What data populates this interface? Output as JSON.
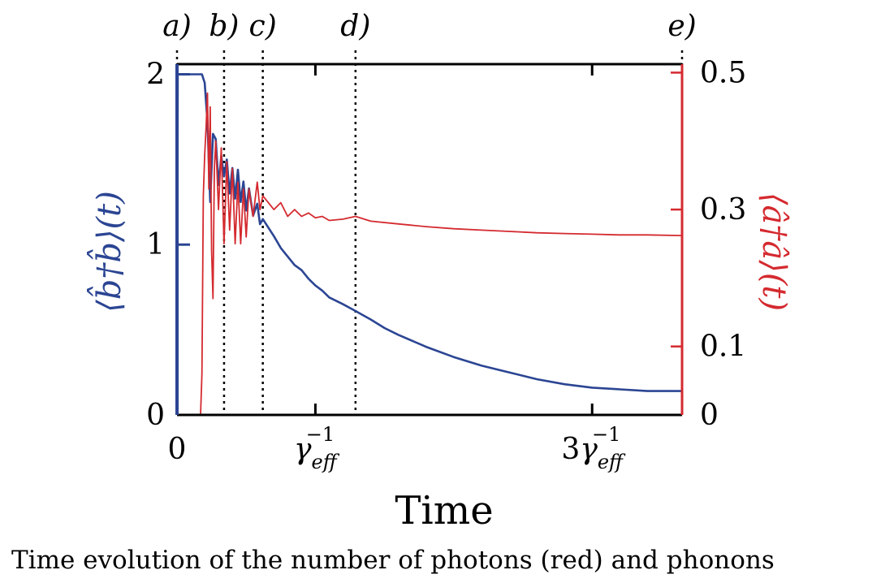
{
  "chart_data": {
    "type": "line",
    "xlabel": "Time",
    "ylabel_left": "⟨b̂†b̂⟩(t)",
    "ylabel_right": "⟨â†â⟩(t)",
    "x_ticks": [
      {
        "x": 0,
        "label": "0"
      },
      {
        "x": 1,
        "label": "γ",
        "sup": "−1",
        "sub": "eff"
      },
      {
        "x": 3,
        "label": "3γ",
        "sup": "−1",
        "sub": "eff"
      }
    ],
    "xlim": [
      0,
      3.65
    ],
    "ylim_left": [
      0,
      2.05
    ],
    "ylim_right": [
      0,
      0.51
    ],
    "y_ticks_left": [
      {
        "y": 0,
        "label": "0"
      },
      {
        "y": 1,
        "label": "1"
      },
      {
        "y": 2,
        "label": "2"
      }
    ],
    "y_ticks_right": [
      {
        "y": 0,
        "label": "0"
      },
      {
        "y": 0.1,
        "label": "0.1"
      },
      {
        "y": 0.3,
        "label": "0.3"
      },
      {
        "y": 0.5,
        "label": "0.5"
      }
    ],
    "phase_markers": [
      {
        "x": 0.0,
        "label": "a)"
      },
      {
        "x": 0.34,
        "label": "b)"
      },
      {
        "x": 0.62,
        "label": "c)"
      },
      {
        "x": 1.29,
        "label": "d)"
      },
      {
        "x": 3.65,
        "label": "e)"
      }
    ],
    "series": [
      {
        "name": "phonons",
        "axis": "left",
        "color": "#2b4593",
        "x": [
          0,
          0.005,
          0.01,
          0.05,
          0.1,
          0.15,
          0.18,
          0.2,
          0.22,
          0.24,
          0.25,
          0.26,
          0.28,
          0.3,
          0.32,
          0.34,
          0.36,
          0.38,
          0.4,
          0.42,
          0.44,
          0.46,
          0.48,
          0.5,
          0.52,
          0.55,
          0.58,
          0.6,
          0.62,
          0.66,
          0.7,
          0.75,
          0.8,
          0.85,
          0.9,
          0.95,
          1.0,
          1.05,
          1.1,
          1.2,
          1.29,
          1.4,
          1.5,
          1.6,
          1.8,
          2.0,
          2.2,
          2.4,
          2.6,
          2.8,
          3.0,
          3.2,
          3.4,
          3.65
        ],
        "y": [
          0,
          2.0,
          2.0,
          2.0,
          2.0,
          2.0,
          2.0,
          1.95,
          1.72,
          1.25,
          1.45,
          1.65,
          1.62,
          1.35,
          1.52,
          1.4,
          1.5,
          1.3,
          1.45,
          1.27,
          1.44,
          1.25,
          1.37,
          1.2,
          1.33,
          1.17,
          1.24,
          1.12,
          1.15,
          1.1,
          1.05,
          0.98,
          0.93,
          0.88,
          0.85,
          0.8,
          0.76,
          0.73,
          0.69,
          0.65,
          0.61,
          0.56,
          0.51,
          0.47,
          0.4,
          0.34,
          0.29,
          0.25,
          0.21,
          0.18,
          0.16,
          0.15,
          0.14,
          0.14
        ]
      },
      {
        "name": "photons",
        "axis": "right",
        "color": "#d42a2f",
        "x": [
          0,
          0.17,
          0.18,
          0.19,
          0.2,
          0.21,
          0.22,
          0.23,
          0.24,
          0.25,
          0.26,
          0.27,
          0.28,
          0.3,
          0.32,
          0.34,
          0.36,
          0.38,
          0.4,
          0.42,
          0.44,
          0.46,
          0.48,
          0.5,
          0.52,
          0.55,
          0.58,
          0.6,
          0.62,
          0.66,
          0.7,
          0.75,
          0.8,
          0.85,
          0.9,
          0.95,
          1.0,
          1.05,
          1.1,
          1.2,
          1.29,
          1.4,
          1.6,
          1.8,
          2.0,
          2.2,
          2.4,
          2.6,
          2.8,
          3.0,
          3.2,
          3.4,
          3.65
        ],
        "y": [
          0,
          0,
          0.06,
          0.32,
          0.38,
          0.42,
          0.47,
          0.33,
          0.45,
          0.24,
          0.17,
          0.36,
          0.4,
          0.3,
          0.39,
          0.25,
          0.37,
          0.27,
          0.36,
          0.25,
          0.34,
          0.25,
          0.33,
          0.26,
          0.33,
          0.29,
          0.34,
          0.3,
          0.32,
          0.31,
          0.3,
          0.31,
          0.29,
          0.3,
          0.29,
          0.295,
          0.288,
          0.29,
          0.284,
          0.286,
          0.29,
          0.283,
          0.279,
          0.275,
          0.272,
          0.27,
          0.268,
          0.266,
          0.265,
          0.264,
          0.263,
          0.263,
          0.262
        ]
      }
    ]
  },
  "caption": "Time evolution of the number of photons (red) and phonons"
}
